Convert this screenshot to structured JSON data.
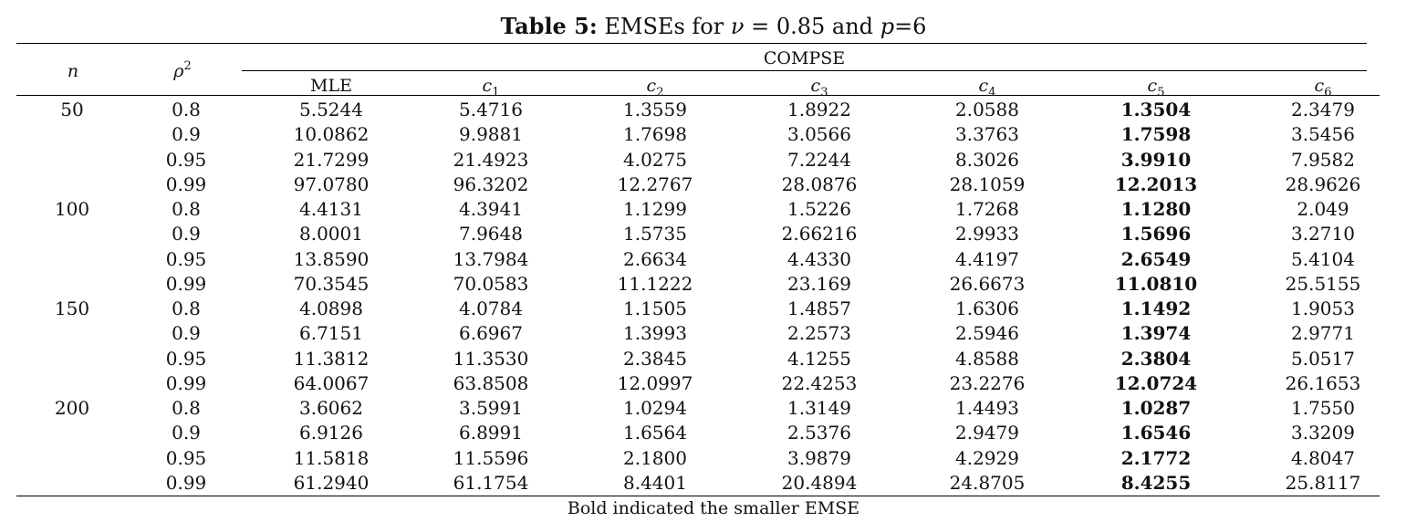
{
  "caption": {
    "label": "Table 5:",
    "text_pre": "EMSEs for",
    "nu_symbol": "ν",
    "equals": "=",
    "nu_value": "0.85",
    "and": "and",
    "p_symbol": "p",
    "p_value": "=6"
  },
  "headers": {
    "n": "n",
    "rho_base": "ρ",
    "rho_exp": "2",
    "group": "COMPSE",
    "mle": "MLE",
    "c_symbol": "c",
    "c_subs": [
      "1",
      "2",
      "3",
      "4",
      "5",
      "6"
    ]
  },
  "rows": [
    {
      "n": "50",
      "rho2": "0.8",
      "vals": [
        "5.5244",
        "5.4716",
        "1.3559",
        "1.8922",
        "2.0588",
        "1.3504",
        "2.3479"
      ]
    },
    {
      "n": "",
      "rho2": "0.9",
      "vals": [
        "10.0862",
        "9.9881",
        "1.7698",
        "3.0566",
        "3.3763",
        "1.7598",
        "3.5456"
      ]
    },
    {
      "n": "",
      "rho2": "0.95",
      "vals": [
        "21.7299",
        "21.4923",
        "4.0275",
        "7.2244",
        "8.3026",
        "3.9910",
        "7.9582"
      ]
    },
    {
      "n": "",
      "rho2": "0.99",
      "vals": [
        "97.0780",
        "96.3202",
        "12.2767",
        "28.0876",
        "28.1059",
        "12.2013",
        "28.9626"
      ]
    },
    {
      "n": "100",
      "rho2": "0.8",
      "vals": [
        "4.4131",
        "4.3941",
        "1.1299",
        "1.5226",
        "1.7268",
        "1.1280",
        "2.049"
      ]
    },
    {
      "n": "",
      "rho2": "0.9",
      "vals": [
        "8.0001",
        "7.9648",
        "1.5735",
        "2.66216",
        "2.9933",
        "1.5696",
        "3.2710"
      ]
    },
    {
      "n": "",
      "rho2": "0.95",
      "vals": [
        "13.8590",
        "13.7984",
        "2.6634",
        "4.4330",
        "4.4197",
        "2.6549",
        "5.4104"
      ]
    },
    {
      "n": "",
      "rho2": "0.99",
      "vals": [
        "70.3545",
        "70.0583",
        "11.1222",
        "23.169",
        "26.6673",
        "11.0810",
        "25.5155"
      ]
    },
    {
      "n": "150",
      "rho2": "0.8",
      "vals": [
        "4.0898",
        "4.0784",
        "1.1505",
        "1.4857",
        "1.6306",
        "1.1492",
        "1.9053"
      ]
    },
    {
      "n": "",
      "rho2": "0.9",
      "vals": [
        "6.7151",
        "6.6967",
        "1.3993",
        "2.2573",
        "2.5946",
        "1.3974",
        "2.9771"
      ]
    },
    {
      "n": "",
      "rho2": "0.95",
      "vals": [
        "11.3812",
        "11.3530",
        "2.3845",
        "4.1255",
        "4.8588",
        "2.3804",
        "5.0517"
      ]
    },
    {
      "n": "",
      "rho2": "0.99",
      "vals": [
        "64.0067",
        "63.8508",
        "12.0997",
        "22.4253",
        "23.2276",
        "12.0724",
        "26.1653"
      ]
    },
    {
      "n": "200",
      "rho2": "0.8",
      "vals": [
        "3.6062",
        "3.5991",
        "1.0294",
        "1.3149",
        "1.4493",
        "1.0287",
        "1.7550"
      ]
    },
    {
      "n": "",
      "rho2": "0.9",
      "vals": [
        "6.9126",
        "6.8991",
        "1.6564",
        "2.5376",
        "2.9479",
        "1.6546",
        "3.3209"
      ]
    },
    {
      "n": "",
      "rho2": "0.95",
      "vals": [
        "11.5818",
        "11.5596",
        "2.1800",
        "3.9879",
        "4.2929",
        "2.1772",
        "4.8047"
      ]
    },
    {
      "n": "",
      "rho2": "0.99",
      "vals": [
        "61.2940",
        "61.1754",
        "8.4401",
        "20.4894",
        "24.8705",
        "8.4255",
        "25.8117"
      ]
    }
  ],
  "bold_column": 5,
  "note": "Bold indicated the smaller EMSE"
}
